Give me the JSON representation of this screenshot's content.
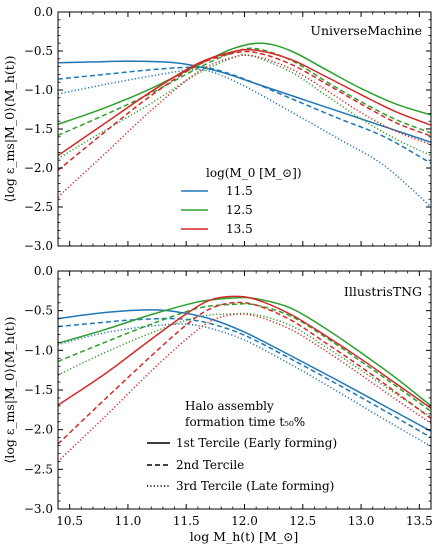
{
  "figure": {
    "xlabel": "log M_h(t) [M_⊙]",
    "colors": {
      "11.5": "#1f77b4",
      "12.5": "#2ca02c",
      "13.5": "#d62728"
    },
    "x_ticks": [
      "10.5",
      "11.0",
      "11.5",
      "12.0",
      "12.5",
      "13.0",
      "13.5"
    ],
    "y_ticks": [
      "0.0",
      "-0.5",
      "-1.0",
      "-1.5",
      "-2.0",
      "-2.5",
      "-3.0"
    ]
  },
  "chart_data": [
    {
      "type": "line",
      "panel": "top",
      "title": "UniverseMachine",
      "xlabel": "",
      "ylabel": "⟨log ε_ms|M_0⟩(M_h(t))",
      "xlim": [
        10.4,
        13.6
      ],
      "ylim": [
        -3.0,
        0.0
      ],
      "grid": false,
      "legend": {
        "placement": "center-left",
        "title": "log(M_0 [M_⊙])",
        "entries": [
          {
            "label": "11.5",
            "color": "#1f77b4",
            "style": "solid"
          },
          {
            "label": "12.5",
            "color": "#2ca02c",
            "style": "solid"
          },
          {
            "label": "13.5",
            "color": "#d62728",
            "style": "solid"
          }
        ]
      },
      "series": [
        {
          "mass": "11.5",
          "tercile": 1,
          "color": "#1f77b4",
          "style": "solid",
          "x": [
            10.4,
            10.7,
            11.0,
            11.3,
            11.5,
            11.8,
            12.1,
            12.5,
            12.9,
            13.3,
            13.6
          ],
          "y": [
            -0.65,
            -0.64,
            -0.63,
            -0.64,
            -0.67,
            -0.77,
            -0.92,
            -1.12,
            -1.32,
            -1.52,
            -1.67
          ]
        },
        {
          "mass": "11.5",
          "tercile": 2,
          "color": "#1f77b4",
          "style": "dashed",
          "x": [
            10.4,
            10.8,
            11.2,
            11.5,
            11.7,
            12.0,
            12.4,
            12.8,
            13.2,
            13.6
          ],
          "y": [
            -0.86,
            -0.8,
            -0.74,
            -0.71,
            -0.72,
            -0.86,
            -1.11,
            -1.36,
            -1.6,
            -1.94
          ]
        },
        {
          "mass": "11.5",
          "tercile": 3,
          "color": "#1f77b4",
          "style": "dotted",
          "x": [
            10.4,
            10.8,
            11.2,
            11.5,
            11.7,
            12.0,
            12.4,
            12.8,
            13.2,
            13.6
          ],
          "y": [
            -1.05,
            -0.93,
            -0.82,
            -0.75,
            -0.76,
            -0.95,
            -1.28,
            -1.62,
            -1.97,
            -2.5
          ]
        },
        {
          "mass": "12.5",
          "tercile": 1,
          "color": "#2ca02c",
          "style": "solid",
          "x": [
            10.4,
            10.8,
            11.2,
            11.6,
            11.9,
            12.15,
            12.4,
            12.7,
            13.0,
            13.3,
            13.6
          ],
          "y": [
            -1.44,
            -1.23,
            -0.98,
            -0.68,
            -0.47,
            -0.4,
            -0.5,
            -0.74,
            -0.98,
            -1.18,
            -1.32
          ]
        },
        {
          "mass": "12.5",
          "tercile": 2,
          "color": "#2ca02c",
          "style": "dashed",
          "x": [
            10.4,
            10.8,
            11.2,
            11.6,
            11.9,
            12.1,
            12.4,
            12.7,
            13.0,
            13.3,
            13.6
          ],
          "y": [
            -1.58,
            -1.32,
            -1.04,
            -0.72,
            -0.52,
            -0.47,
            -0.62,
            -0.89,
            -1.15,
            -1.38,
            -1.55
          ]
        },
        {
          "mass": "12.5",
          "tercile": 3,
          "color": "#2ca02c",
          "style": "dotted",
          "x": [
            10.4,
            10.8,
            11.2,
            11.6,
            11.9,
            12.05,
            12.4,
            12.7,
            13.0,
            13.3,
            13.6
          ],
          "y": [
            -1.88,
            -1.52,
            -1.17,
            -0.79,
            -0.59,
            -0.56,
            -0.77,
            -1.07,
            -1.37,
            -1.63,
            -1.84
          ]
        },
        {
          "mass": "13.5",
          "tercile": 1,
          "color": "#d62728",
          "style": "solid",
          "x": [
            10.4,
            10.8,
            11.2,
            11.6,
            11.9,
            12.1,
            12.4,
            12.7,
            13.0,
            13.3,
            13.6
          ],
          "y": [
            -1.84,
            -1.43,
            -1.02,
            -0.66,
            -0.51,
            -0.49,
            -0.61,
            -0.83,
            -1.06,
            -1.28,
            -1.45
          ]
        },
        {
          "mass": "13.5",
          "tercile": 2,
          "color": "#d62728",
          "style": "dashed",
          "x": [
            10.4,
            10.8,
            11.2,
            11.6,
            11.9,
            12.1,
            12.4,
            12.7,
            13.0,
            13.3,
            13.6
          ],
          "y": [
            -2.03,
            -1.54,
            -1.07,
            -0.68,
            -0.53,
            -0.52,
            -0.67,
            -0.92,
            -1.18,
            -1.42,
            -1.59
          ]
        },
        {
          "mass": "13.5",
          "tercile": 3,
          "color": "#d62728",
          "style": "dotted",
          "x": [
            10.4,
            10.8,
            11.2,
            11.6,
            11.9,
            12.1,
            12.4,
            12.7,
            13.0,
            13.3,
            13.6
          ],
          "y": [
            -2.37,
            -1.82,
            -1.26,
            -0.77,
            -0.58,
            -0.57,
            -0.73,
            -1.0,
            -1.29,
            -1.53,
            -1.7
          ]
        }
      ]
    },
    {
      "type": "line",
      "panel": "bottom",
      "title": "IllustrisTNG",
      "xlabel": "log M_h(t) [M_⊙]",
      "ylabel": "⟨log ε_ms|M_0⟩(M_h(t))",
      "xlim": [
        10.4,
        13.6
      ],
      "ylim": [
        -3.0,
        0.0
      ],
      "grid": false,
      "legend": {
        "placement": "bottom-center",
        "title": "Halo assembly formation time t_50%",
        "entries": [
          {
            "label": "1st Tercile (Early forming)",
            "style": "solid"
          },
          {
            "label": "2nd Tercile",
            "style": "dashed"
          },
          {
            "label": "3rd Tercile (Late forming)",
            "style": "dotted"
          }
        ]
      },
      "series": [
        {
          "mass": "11.5",
          "tercile": 1,
          "color": "#1f77b4",
          "style": "solid",
          "x": [
            10.4,
            10.7,
            11.0,
            11.2,
            11.4,
            11.7,
            12.0,
            12.4,
            12.8,
            13.2,
            13.6
          ],
          "y": [
            -0.6,
            -0.54,
            -0.5,
            -0.49,
            -0.51,
            -0.6,
            -0.77,
            -1.07,
            -1.38,
            -1.7,
            -2.02
          ]
        },
        {
          "mass": "11.5",
          "tercile": 2,
          "color": "#1f77b4",
          "style": "dashed",
          "x": [
            10.4,
            10.7,
            11.0,
            11.3,
            11.5,
            11.7,
            12.0,
            12.4,
            12.8,
            13.2,
            13.6
          ],
          "y": [
            -0.7,
            -0.66,
            -0.62,
            -0.6,
            -0.61,
            -0.66,
            -0.81,
            -1.11,
            -1.43,
            -1.76,
            -2.1
          ]
        },
        {
          "mass": "11.5",
          "tercile": 3,
          "color": "#1f77b4",
          "style": "dotted",
          "x": [
            10.4,
            10.7,
            11.0,
            11.3,
            11.5,
            11.7,
            12.0,
            12.4,
            12.8,
            13.2,
            13.6
          ],
          "y": [
            -0.93,
            -0.81,
            -0.73,
            -0.68,
            -0.67,
            -0.72,
            -0.87,
            -1.18,
            -1.52,
            -1.87,
            -2.21
          ]
        },
        {
          "mass": "12.5",
          "tercile": 1,
          "color": "#2ca02c",
          "style": "solid",
          "x": [
            10.4,
            10.8,
            11.2,
            11.6,
            11.9,
            12.1,
            12.4,
            12.7,
            13.0,
            13.3,
            13.6
          ],
          "y": [
            -0.91,
            -0.74,
            -0.55,
            -0.39,
            -0.34,
            -0.35,
            -0.47,
            -0.73,
            -1.03,
            -1.35,
            -1.7
          ]
        },
        {
          "mass": "12.5",
          "tercile": 2,
          "color": "#2ca02c",
          "style": "dashed",
          "x": [
            10.4,
            10.8,
            11.2,
            11.6,
            11.9,
            12.1,
            12.4,
            12.7,
            13.0,
            13.3,
            13.6
          ],
          "y": [
            -1.14,
            -0.9,
            -0.67,
            -0.47,
            -0.42,
            -0.43,
            -0.57,
            -0.84,
            -1.14,
            -1.45,
            -1.77
          ]
        },
        {
          "mass": "12.5",
          "tercile": 3,
          "color": "#2ca02c",
          "style": "dotted",
          "x": [
            10.4,
            10.8,
            11.2,
            11.6,
            11.9,
            12.1,
            12.4,
            12.7,
            13.0,
            13.3,
            13.6
          ],
          "y": [
            -1.31,
            -1.03,
            -0.78,
            -0.58,
            -0.54,
            -0.55,
            -0.69,
            -0.96,
            -1.25,
            -1.55,
            -1.84
          ]
        },
        {
          "mass": "13.5",
          "tercile": 1,
          "color": "#d62728",
          "style": "solid",
          "x": [
            10.4,
            10.8,
            11.2,
            11.5,
            11.7,
            11.9,
            12.1,
            12.4,
            12.7,
            13.0,
            13.3,
            13.6
          ],
          "y": [
            -1.69,
            -1.3,
            -0.86,
            -0.54,
            -0.37,
            -0.32,
            -0.36,
            -0.55,
            -0.82,
            -1.11,
            -1.42,
            -1.73
          ]
        },
        {
          "mass": "13.5",
          "tercile": 2,
          "color": "#d62728",
          "style": "dashed",
          "x": [
            10.4,
            10.8,
            11.2,
            11.5,
            11.7,
            11.9,
            12.1,
            12.4,
            12.7,
            13.0,
            13.3,
            13.6
          ],
          "y": [
            -2.18,
            -1.62,
            -1.07,
            -0.68,
            -0.48,
            -0.4,
            -0.43,
            -0.62,
            -0.91,
            -1.21,
            -1.53,
            -1.86
          ]
        },
        {
          "mass": "13.5",
          "tercile": 3,
          "color": "#d62728",
          "style": "dotted",
          "x": [
            10.4,
            10.8,
            11.2,
            11.5,
            11.7,
            11.9,
            12.1,
            12.4,
            12.7,
            13.0,
            13.3,
            13.6
          ],
          "y": [
            -2.4,
            -1.84,
            -1.26,
            -0.86,
            -0.64,
            -0.55,
            -0.57,
            -0.74,
            -1.01,
            -1.31,
            -1.62,
            -1.92
          ]
        }
      ]
    }
  ]
}
